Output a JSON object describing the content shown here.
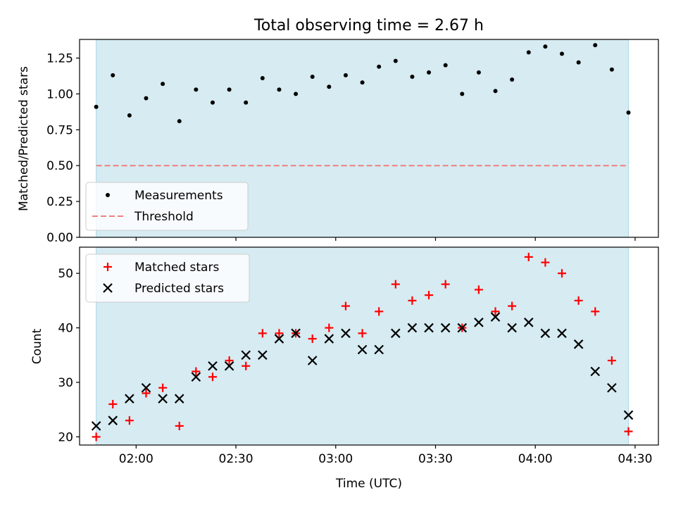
{
  "chart_data": {
    "title": "Total observing time = 2.67 h",
    "xlabel": "Time (UTC)",
    "xlim": [
      "01:43",
      "04:37"
    ],
    "x_ticks": [
      "02:00",
      "02:30",
      "03:00",
      "03:30",
      "04:00",
      "04:30"
    ],
    "shaded_span": [
      "01:48",
      "04:28"
    ],
    "colors": {
      "span": "#add8e6",
      "measurements": "#000000",
      "threshold": "#f08080",
      "matched": "#ff0000",
      "predicted": "#000000"
    },
    "top_panel": {
      "type": "scatter",
      "ylabel": "Matched/Predicted stars",
      "ylim": [
        0,
        1.38
      ],
      "y_ticks": [
        "0.00",
        "0.25",
        "0.50",
        "0.75",
        "1.00",
        "1.25"
      ],
      "legend": {
        "position": "lower left",
        "entries": [
          "Measurements",
          "Threshold"
        ]
      },
      "threshold": 0.5,
      "series": [
        {
          "name": "Measurements",
          "x": [
            "01:48",
            "01:53",
            "01:58",
            "02:03",
            "02:08",
            "02:13",
            "02:18",
            "02:23",
            "02:28",
            "02:33",
            "02:38",
            "02:43",
            "02:48",
            "02:53",
            "02:58",
            "03:03",
            "03:08",
            "03:13",
            "03:18",
            "03:23",
            "03:28",
            "03:33",
            "03:38",
            "03:43",
            "03:48",
            "03:53",
            "03:58",
            "04:03",
            "04:08",
            "04:13",
            "04:18",
            "04:23",
            "04:28"
          ],
          "y": [
            0.91,
            1.13,
            0.85,
            0.97,
            1.07,
            0.81,
            1.03,
            0.94,
            1.03,
            0.94,
            1.11,
            1.03,
            1.0,
            1.12,
            1.05,
            1.13,
            1.08,
            1.19,
            1.23,
            1.12,
            1.15,
            1.2,
            1.0,
            1.15,
            1.02,
            1.1,
            1.29,
            1.33,
            1.28,
            1.22,
            1.34,
            1.17,
            0.87
          ]
        }
      ]
    },
    "bottom_panel": {
      "type": "scatter",
      "ylabel": "Count",
      "ylim": [
        18.5,
        54.8
      ],
      "y_ticks": [
        "20",
        "30",
        "40",
        "50"
      ],
      "legend": {
        "position": "upper left",
        "entries": [
          "Matched stars",
          "Predicted stars"
        ]
      },
      "series": [
        {
          "name": "Matched stars",
          "x": [
            "01:48",
            "01:53",
            "01:58",
            "02:03",
            "02:08",
            "02:13",
            "02:18",
            "02:23",
            "02:28",
            "02:33",
            "02:38",
            "02:43",
            "02:48",
            "02:53",
            "02:58",
            "03:03",
            "03:08",
            "03:13",
            "03:18",
            "03:23",
            "03:28",
            "03:33",
            "03:38",
            "03:43",
            "03:48",
            "03:53",
            "03:58",
            "04:03",
            "04:08",
            "04:13",
            "04:18",
            "04:23",
            "04:28"
          ],
          "y": [
            20,
            26,
            23,
            28,
            29,
            22,
            32,
            31,
            34,
            33,
            39,
            39,
            39,
            38,
            40,
            44,
            39,
            43,
            48,
            45,
            46,
            48,
            40,
            47,
            43,
            44,
            53,
            52,
            50,
            45,
            43,
            34,
            21
          ]
        },
        {
          "name": "Predicted stars",
          "x": [
            "01:48",
            "01:53",
            "01:58",
            "02:03",
            "02:08",
            "02:13",
            "02:18",
            "02:23",
            "02:28",
            "02:33",
            "02:38",
            "02:43",
            "02:48",
            "02:53",
            "02:58",
            "03:03",
            "03:08",
            "03:13",
            "03:18",
            "03:23",
            "03:28",
            "03:33",
            "03:38",
            "03:43",
            "03:48",
            "03:53",
            "03:58",
            "04:03",
            "04:08",
            "04:13",
            "04:18",
            "04:23",
            "04:28"
          ],
          "y": [
            22,
            23,
            27,
            29,
            27,
            27,
            31,
            33,
            33,
            35,
            35,
            38,
            39,
            34,
            38,
            39,
            36,
            36,
            39,
            40,
            40,
            40,
            40,
            41,
            42,
            40,
            41,
            39,
            39,
            37,
            32,
            29,
            24
          ]
        }
      ]
    }
  }
}
